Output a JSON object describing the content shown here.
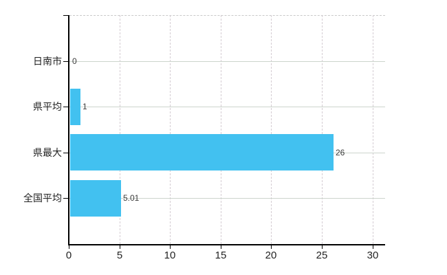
{
  "chart_data": {
    "type": "bar",
    "orientation": "horizontal",
    "categories": [
      "日南市",
      "県平均",
      "県最大",
      "全国平均"
    ],
    "values": [
      0,
      1,
      26,
      5.01
    ],
    "value_labels": [
      "0",
      "1",
      "26",
      "5.01"
    ],
    "x_ticks": [
      0,
      5,
      10,
      15,
      20,
      25,
      30
    ],
    "x_tick_labels": [
      "0",
      "5",
      "10",
      "15",
      "20",
      "25",
      "30"
    ],
    "xlim": [
      0,
      31.25
    ],
    "grid": true,
    "legend": false,
    "colors": {
      "bar": "#42c1f0",
      "axis": "#000000",
      "grid_horizontal": "#ccd4cc",
      "grid_vertical": "#d4ccd2",
      "plot_top_border": "#c9c9c9",
      "category_label": "#222222",
      "tick_label": "#222222",
      "value_label": "#3c3c3c",
      "background": "#ffffff"
    }
  }
}
